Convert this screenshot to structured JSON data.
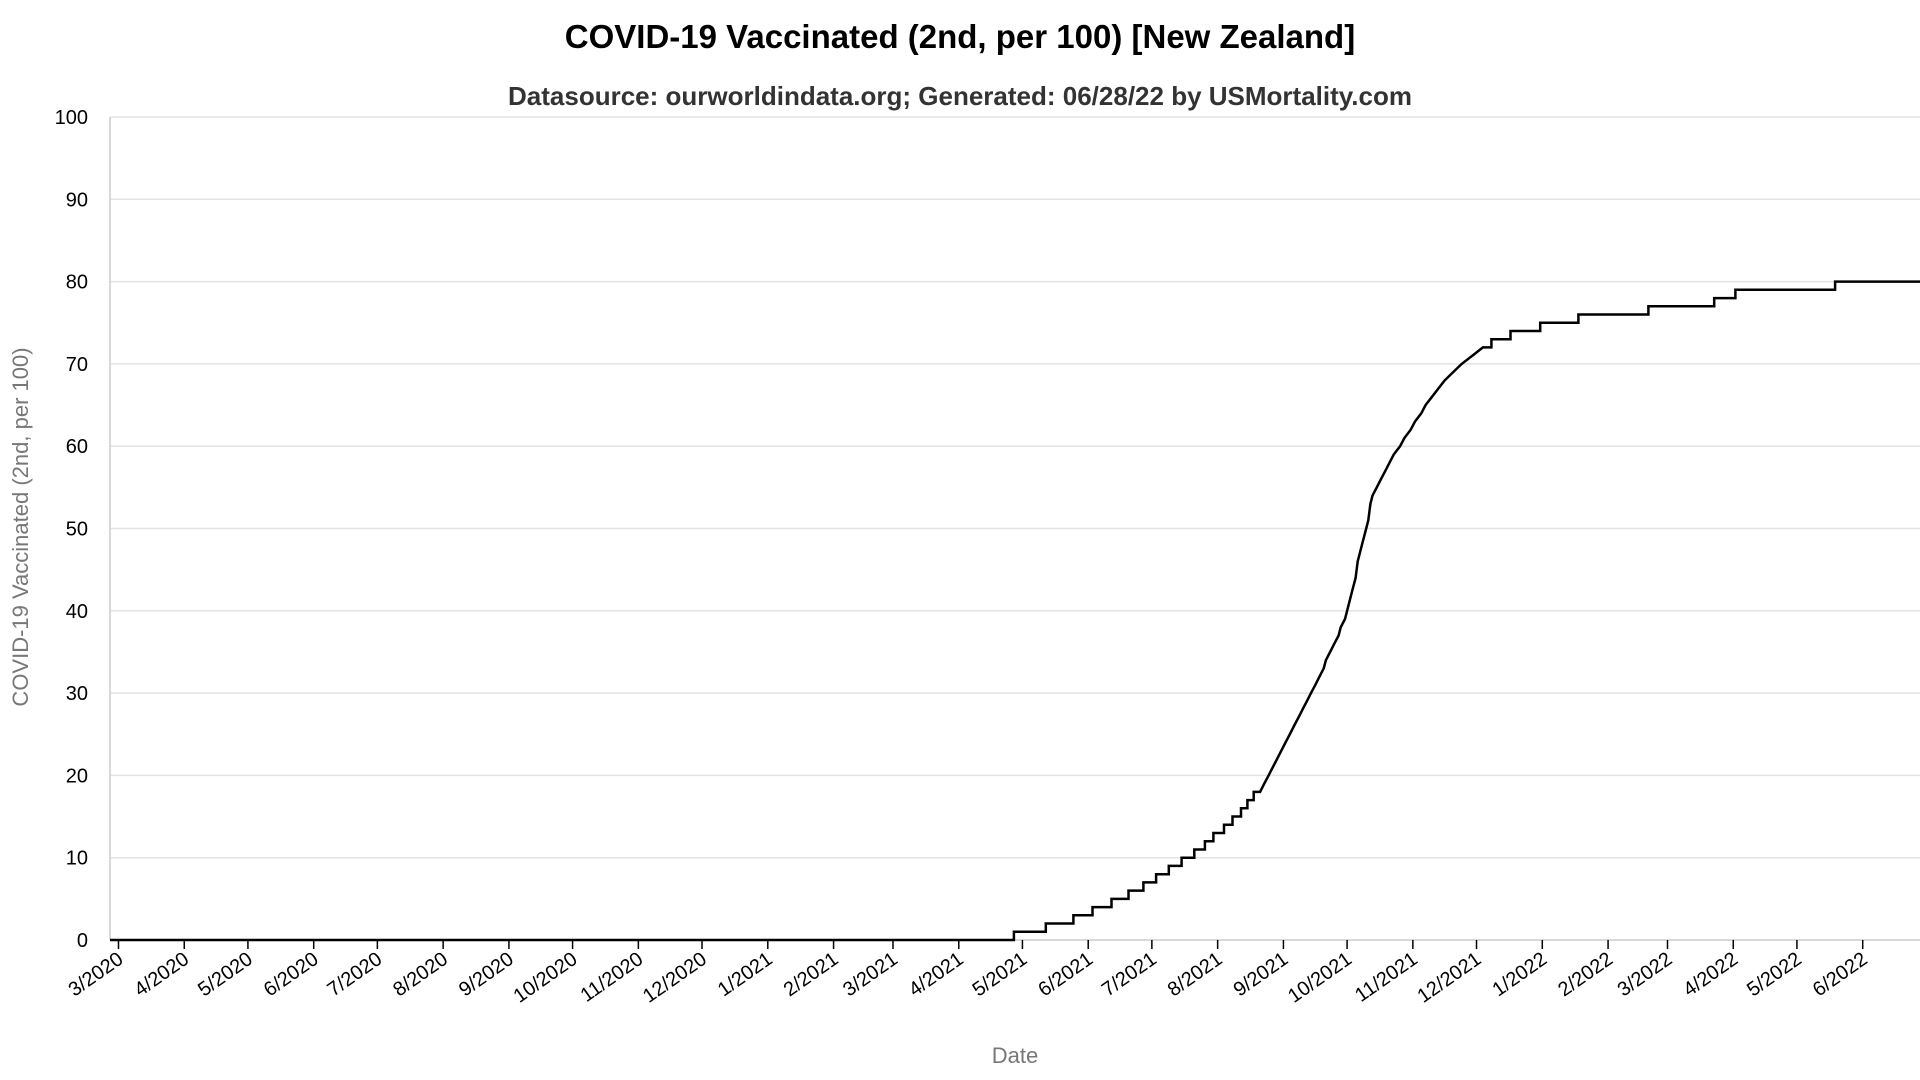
{
  "chart_data": {
    "type": "line",
    "title": "COVID-19 Vaccinated (2nd, per 100) [New Zealand]",
    "subtitle": "Datasource: ourworldindata.org; Generated: 06/28/22 by USMortality.com",
    "xlabel": "Date",
    "ylabel": "COVID-19 Vaccinated (2nd, per 100)",
    "ylim": [
      0,
      100
    ],
    "yticks": [
      0,
      10,
      20,
      30,
      40,
      50,
      60,
      70,
      80,
      90,
      100
    ],
    "xlim": [
      "2020-02-26",
      "2022-06-28"
    ],
    "xticks": [
      {
        "date": "2020-03-01",
        "label": "3/2020"
      },
      {
        "date": "2020-04-01",
        "label": "4/2020"
      },
      {
        "date": "2020-05-01",
        "label": "5/2020"
      },
      {
        "date": "2020-06-01",
        "label": "6/2020"
      },
      {
        "date": "2020-07-01",
        "label": "7/2020"
      },
      {
        "date": "2020-08-01",
        "label": "8/2020"
      },
      {
        "date": "2020-09-01",
        "label": "9/2020"
      },
      {
        "date": "2020-10-01",
        "label": "10/2020"
      },
      {
        "date": "2020-11-01",
        "label": "11/2020"
      },
      {
        "date": "2020-12-01",
        "label": "12/2020"
      },
      {
        "date": "2021-01-01",
        "label": "1/2021"
      },
      {
        "date": "2021-02-01",
        "label": "2/2021"
      },
      {
        "date": "2021-03-01",
        "label": "3/2021"
      },
      {
        "date": "2021-04-01",
        "label": "4/2021"
      },
      {
        "date": "2021-05-01",
        "label": "5/2021"
      },
      {
        "date": "2021-06-01",
        "label": "6/2021"
      },
      {
        "date": "2021-07-01",
        "label": "7/2021"
      },
      {
        "date": "2021-08-01",
        "label": "8/2021"
      },
      {
        "date": "2021-09-01",
        "label": "9/2021"
      },
      {
        "date": "2021-10-01",
        "label": "10/2021"
      },
      {
        "date": "2021-11-01",
        "label": "11/2021"
      },
      {
        "date": "2021-12-01",
        "label": "12/2021"
      },
      {
        "date": "2022-01-01",
        "label": "1/2022"
      },
      {
        "date": "2022-02-01",
        "label": "2/2022"
      },
      {
        "date": "2022-03-01",
        "label": "3/2022"
      },
      {
        "date": "2022-04-01",
        "label": "4/2022"
      },
      {
        "date": "2022-05-01",
        "label": "5/2022"
      },
      {
        "date": "2022-06-01",
        "label": "6/2022"
      }
    ],
    "grid": true,
    "series": [
      {
        "color": "#000000",
        "points": [
          [
            "2020-02-26",
            0
          ],
          [
            "2021-04-27",
            0
          ],
          [
            "2021-04-27",
            1
          ],
          [
            "2021-05-12",
            1
          ],
          [
            "2021-05-12",
            2
          ],
          [
            "2021-05-25",
            2
          ],
          [
            "2021-05-25",
            3
          ],
          [
            "2021-06-03",
            3
          ],
          [
            "2021-06-03",
            4
          ],
          [
            "2021-06-12",
            4
          ],
          [
            "2021-06-12",
            5
          ],
          [
            "2021-06-20",
            5
          ],
          [
            "2021-06-20",
            6
          ],
          [
            "2021-06-27",
            6
          ],
          [
            "2021-06-27",
            7
          ],
          [
            "2021-07-03",
            7
          ],
          [
            "2021-07-03",
            8
          ],
          [
            "2021-07-09",
            8
          ],
          [
            "2021-07-09",
            9
          ],
          [
            "2021-07-15",
            9
          ],
          [
            "2021-07-15",
            10
          ],
          [
            "2021-07-21",
            10
          ],
          [
            "2021-07-21",
            11
          ],
          [
            "2021-07-26",
            11
          ],
          [
            "2021-07-26",
            12
          ],
          [
            "2021-07-30",
            12
          ],
          [
            "2021-07-30",
            13
          ],
          [
            "2021-08-04",
            13
          ],
          [
            "2021-08-04",
            14
          ],
          [
            "2021-08-08",
            14
          ],
          [
            "2021-08-08",
            15
          ],
          [
            "2021-08-12",
            15
          ],
          [
            "2021-08-12",
            16
          ],
          [
            "2021-08-15",
            16
          ],
          [
            "2021-08-15",
            17
          ],
          [
            "2021-08-18",
            17
          ],
          [
            "2021-08-18",
            18
          ],
          [
            "2021-08-21",
            18
          ],
          [
            "2021-08-23",
            19
          ],
          [
            "2021-08-25",
            20
          ],
          [
            "2021-08-27",
            21
          ],
          [
            "2021-08-29",
            22
          ],
          [
            "2021-08-31",
            23
          ],
          [
            "2021-09-02",
            24
          ],
          [
            "2021-09-04",
            25
          ],
          [
            "2021-09-06",
            26
          ],
          [
            "2021-09-08",
            27
          ],
          [
            "2021-09-10",
            28
          ],
          [
            "2021-09-12",
            29
          ],
          [
            "2021-09-14",
            30
          ],
          [
            "2021-09-16",
            31
          ],
          [
            "2021-09-18",
            32
          ],
          [
            "2021-09-20",
            33
          ],
          [
            "2021-09-21",
            34
          ],
          [
            "2021-09-23",
            35
          ],
          [
            "2021-09-25",
            36
          ],
          [
            "2021-09-27",
            37
          ],
          [
            "2021-09-28",
            38
          ],
          [
            "2021-09-30",
            39
          ],
          [
            "2021-10-02",
            41
          ],
          [
            "2021-10-03",
            42
          ],
          [
            "2021-10-05",
            44
          ],
          [
            "2021-10-06",
            46
          ],
          [
            "2021-10-08",
            48
          ],
          [
            "2021-10-10",
            50
          ],
          [
            "2021-10-11",
            51
          ],
          [
            "2021-10-12",
            53
          ],
          [
            "2021-10-13",
            54
          ],
          [
            "2021-10-15",
            55
          ],
          [
            "2021-10-17",
            56
          ],
          [
            "2021-10-19",
            57
          ],
          [
            "2021-10-21",
            58
          ],
          [
            "2021-10-23",
            59
          ],
          [
            "2021-10-26",
            60
          ],
          [
            "2021-10-28",
            61
          ],
          [
            "2021-10-31",
            62
          ],
          [
            "2021-11-02",
            63
          ],
          [
            "2021-11-05",
            64
          ],
          [
            "2021-11-07",
            65
          ],
          [
            "2021-11-10",
            66
          ],
          [
            "2021-11-13",
            67
          ],
          [
            "2021-11-16",
            68
          ],
          [
            "2021-11-20",
            69
          ],
          [
            "2021-11-24",
            70
          ],
          [
            "2021-11-24",
            70
          ],
          [
            "2021-11-29",
            71
          ],
          [
            "2021-12-04",
            72
          ],
          [
            "2021-12-08",
            72
          ],
          [
            "2021-12-08",
            73
          ],
          [
            "2021-12-17",
            73
          ],
          [
            "2021-12-17",
            74
          ],
          [
            "2021-12-31",
            74
          ],
          [
            "2021-12-31",
            75
          ],
          [
            "2022-01-18",
            75
          ],
          [
            "2022-01-18",
            76
          ],
          [
            "2022-02-20",
            76
          ],
          [
            "2022-02-20",
            77
          ],
          [
            "2022-03-23",
            77
          ],
          [
            "2022-03-23",
            78
          ],
          [
            "2022-04-02",
            78
          ],
          [
            "2022-04-02",
            79
          ],
          [
            "2022-05-19",
            79
          ],
          [
            "2022-05-19",
            80
          ],
          [
            "2022-06-28",
            80
          ]
        ]
      }
    ]
  }
}
